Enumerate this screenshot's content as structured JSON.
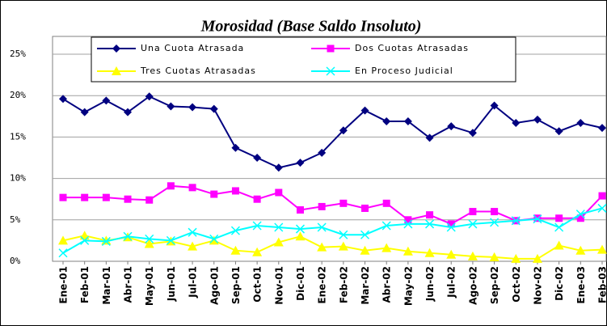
{
  "chart_data": {
    "type": "line",
    "title": "Morosidad (Base Saldo Insoluto)",
    "categories": [
      "Ene-01",
      "Feb-01",
      "Mar-01",
      "Abr-01",
      "May-01",
      "Jun-01",
      "Jul-01",
      "Ago-01",
      "Sep-01",
      "Oct-01",
      "Nov-01",
      "Dic-01",
      "Ene-02",
      "Feb-02",
      "Mar-02",
      "Abr-02",
      "May-02",
      "Jun-02",
      "Jul-02",
      "Ago-02",
      "Sep-02",
      "Oct-02",
      "Nov-02",
      "Dic-02",
      "Ene-03",
      "Feb-03"
    ],
    "series": [
      {
        "name": "Una Cuota Atrasada",
        "color": "#000080",
        "marker": "diamond",
        "values": [
          19.6,
          18.0,
          19.4,
          18.0,
          19.9,
          18.7,
          18.6,
          18.4,
          13.7,
          12.5,
          11.3,
          11.9,
          13.1,
          15.8,
          18.2,
          16.9,
          16.9,
          14.9,
          16.3,
          15.5,
          18.8,
          16.7,
          17.1,
          15.7,
          16.7,
          16.1
        ]
      },
      {
        "name": "Dos Cuotas Atrasadas",
        "color": "#ff00ff",
        "marker": "square",
        "values": [
          7.7,
          7.7,
          7.7,
          7.5,
          7.4,
          9.1,
          8.9,
          8.1,
          8.5,
          7.5,
          8.3,
          6.2,
          6.6,
          7.0,
          6.4,
          7.0,
          5.0,
          5.6,
          4.5,
          6.0,
          6.0,
          4.9,
          5.2,
          5.2,
          5.2,
          7.9
        ]
      },
      {
        "name": "Tres Cuotas Atrasadas",
        "color": "#ffff00",
        "marker": "triangle",
        "values": [
          2.5,
          3.1,
          2.5,
          2.9,
          2.1,
          2.4,
          1.8,
          2.5,
          1.3,
          1.1,
          2.3,
          3.0,
          1.7,
          1.8,
          1.3,
          1.6,
          1.2,
          1.0,
          0.8,
          0.6,
          0.5,
          0.3,
          0.3,
          1.9,
          1.3,
          1.4
        ]
      },
      {
        "name": "En Proceso Judicial",
        "color": "#00ffff",
        "marker": "x",
        "values": [
          1.0,
          2.5,
          2.4,
          3.0,
          2.7,
          2.5,
          3.5,
          2.7,
          3.7,
          4.3,
          4.1,
          3.9,
          4.1,
          3.2,
          3.2,
          4.3,
          4.5,
          4.5,
          4.1,
          4.5,
          4.7,
          4.9,
          5.1,
          4.1,
          5.7,
          6.4
        ]
      }
    ],
    "ylim": [
      0,
      25
    ],
    "yticks": [
      {
        "value": 0,
        "label": "0%"
      },
      {
        "value": 5,
        "label": "5%"
      },
      {
        "value": 10,
        "label": "10%"
      },
      {
        "value": 15,
        "label": "15%"
      },
      {
        "value": 20,
        "label": "20%"
      },
      {
        "value": 25,
        "label": "25%"
      }
    ],
    "grid": true
  }
}
